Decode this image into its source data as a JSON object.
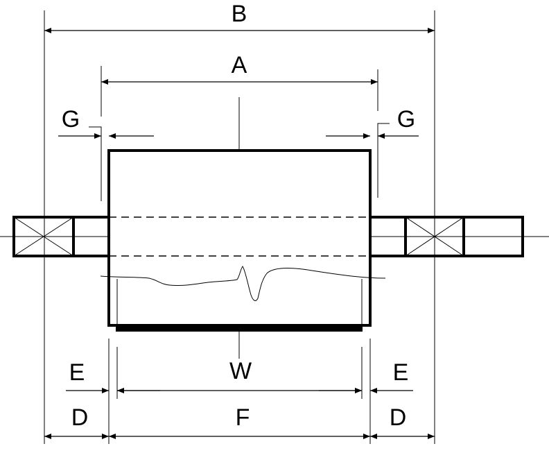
{
  "labels": {
    "b": "B",
    "a": "A",
    "g_left": "G",
    "g_right": "G",
    "w": "W",
    "e_left": "E",
    "e_right": "E",
    "d_left": "D",
    "f": "F",
    "d_right": "D"
  }
}
